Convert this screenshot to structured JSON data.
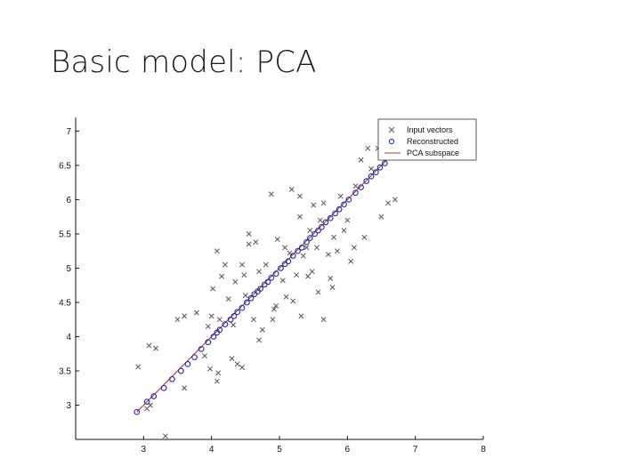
{
  "slide": {
    "title": "Basic model: PCA"
  },
  "chart_data": {
    "type": "scatter",
    "title": "",
    "xlabel": "",
    "ylabel": "",
    "xlim": [
      2,
      8
    ],
    "ylim": [
      2.5,
      7.2
    ],
    "xticks": [
      3,
      4,
      5,
      6,
      7,
      8
    ],
    "yticks": [
      3,
      3.5,
      4,
      4.5,
      5,
      5.5,
      6,
      6.5,
      7
    ],
    "ytick_labels": [
      "3",
      "3.5",
      "4",
      "4.5",
      "5",
      "5.5",
      "6",
      "6.5",
      "7"
    ],
    "grid": false,
    "legend": {
      "position": "top-right",
      "entries": [
        "Input vectors",
        "Reconstructed",
        "PCA subspace"
      ]
    },
    "colors": {
      "input": "#555555",
      "reconstructed": "#2a2aa8",
      "subspace": "#b23a3a"
    },
    "series": [
      {
        "name": "Input vectors",
        "marker": "x",
        "points": [
          [
            2.92,
            3.56
          ],
          [
            3.05,
            2.95
          ],
          [
            3.08,
            3.87
          ],
          [
            3.1,
            3.0
          ],
          [
            3.18,
            3.83
          ],
          [
            3.32,
            2.55
          ],
          [
            3.5,
            4.25
          ],
          [
            3.6,
            4.3
          ],
          [
            3.6,
            3.25
          ],
          [
            3.78,
            4.35
          ],
          [
            3.9,
            3.72
          ],
          [
            3.95,
            4.15
          ],
          [
            4.0,
            4.3
          ],
          [
            3.98,
            3.53
          ],
          [
            4.02,
            4.7
          ],
          [
            4.08,
            3.35
          ],
          [
            4.1,
            3.47
          ],
          [
            4.12,
            4.25
          ],
          [
            4.08,
            5.25
          ],
          [
            4.15,
            4.88
          ],
          [
            4.2,
            5.05
          ],
          [
            4.25,
            4.55
          ],
          [
            4.3,
            3.68
          ],
          [
            4.32,
            4.17
          ],
          [
            4.35,
            4.8
          ],
          [
            4.38,
            3.6
          ],
          [
            4.45,
            3.55
          ],
          [
            4.45,
            5.05
          ],
          [
            4.48,
            4.9
          ],
          [
            4.5,
            4.6
          ],
          [
            4.55,
            5.5
          ],
          [
            4.55,
            5.35
          ],
          [
            4.62,
            4.25
          ],
          [
            4.65,
            5.38
          ],
          [
            4.7,
            4.95
          ],
          [
            4.7,
            3.95
          ],
          [
            4.75,
            4.1
          ],
          [
            4.8,
            5.05
          ],
          [
            4.88,
            6.08
          ],
          [
            4.9,
            4.25
          ],
          [
            4.92,
            4.4
          ],
          [
            4.95,
            4.45
          ],
          [
            4.97,
            5.42
          ],
          [
            5.05,
            4.82
          ],
          [
            5.08,
            5.3
          ],
          [
            5.1,
            4.58
          ],
          [
            5.15,
            5.22
          ],
          [
            5.18,
            6.15
          ],
          [
            5.2,
            4.52
          ],
          [
            5.25,
            4.9
          ],
          [
            5.3,
            6.05
          ],
          [
            5.3,
            5.75
          ],
          [
            5.32,
            4.3
          ],
          [
            5.35,
            5.18
          ],
          [
            5.4,
            5.3
          ],
          [
            5.42,
            4.88
          ],
          [
            5.45,
            5.55
          ],
          [
            5.48,
            4.95
          ],
          [
            5.5,
            5.92
          ],
          [
            5.55,
            5.3
          ],
          [
            5.57,
            4.65
          ],
          [
            5.6,
            5.7
          ],
          [
            5.65,
            4.25
          ],
          [
            5.65,
            5.95
          ],
          [
            5.72,
            5.2
          ],
          [
            5.75,
            4.85
          ],
          [
            5.78,
            4.72
          ],
          [
            5.8,
            5.45
          ],
          [
            5.85,
            5.25
          ],
          [
            5.9,
            6.05
          ],
          [
            5.95,
            5.55
          ],
          [
            6.0,
            5.7
          ],
          [
            6.05,
            5.1
          ],
          [
            6.1,
            5.3
          ],
          [
            6.12,
            6.2
          ],
          [
            6.2,
            6.58
          ],
          [
            6.25,
            5.45
          ],
          [
            6.3,
            6.75
          ],
          [
            6.35,
            6.45
          ],
          [
            6.45,
            6.75
          ],
          [
            6.5,
            5.75
          ],
          [
            6.6,
            5.95
          ],
          [
            6.7,
            6.0
          ],
          [
            6.82,
            7.1
          ]
        ]
      },
      {
        "name": "Reconstructed",
        "marker": "o",
        "points": [
          [
            2.9,
            2.9
          ],
          [
            3.05,
            3.05
          ],
          [
            3.15,
            3.13
          ],
          [
            3.3,
            3.25
          ],
          [
            3.42,
            3.38
          ],
          [
            3.55,
            3.5
          ],
          [
            3.65,
            3.6
          ],
          [
            3.75,
            3.7
          ],
          [
            3.85,
            3.82
          ],
          [
            3.95,
            3.92
          ],
          [
            4.03,
            4.0
          ],
          [
            4.08,
            4.06
          ],
          [
            4.12,
            4.1
          ],
          [
            4.2,
            4.18
          ],
          [
            4.28,
            4.25
          ],
          [
            4.33,
            4.3
          ],
          [
            4.38,
            4.36
          ],
          [
            4.45,
            4.42
          ],
          [
            4.52,
            4.5
          ],
          [
            4.58,
            4.56
          ],
          [
            4.63,
            4.62
          ],
          [
            4.68,
            4.66
          ],
          [
            4.72,
            4.7
          ],
          [
            4.78,
            4.76
          ],
          [
            4.83,
            4.8
          ],
          [
            4.88,
            4.86
          ],
          [
            4.95,
            4.92
          ],
          [
            5.02,
            5.0
          ],
          [
            5.08,
            5.06
          ],
          [
            5.13,
            5.1
          ],
          [
            5.2,
            5.18
          ],
          [
            5.27,
            5.25
          ],
          [
            5.33,
            5.3
          ],
          [
            5.4,
            5.38
          ],
          [
            5.45,
            5.44
          ],
          [
            5.52,
            5.5
          ],
          [
            5.57,
            5.55
          ],
          [
            5.62,
            5.6
          ],
          [
            5.68,
            5.67
          ],
          [
            5.75,
            5.73
          ],
          [
            5.82,
            5.8
          ],
          [
            5.88,
            5.86
          ],
          [
            5.95,
            5.93
          ],
          [
            6.02,
            6.0
          ],
          [
            6.12,
            6.1
          ],
          [
            6.2,
            6.18
          ],
          [
            6.28,
            6.27
          ],
          [
            6.35,
            6.34
          ],
          [
            6.42,
            6.4
          ],
          [
            6.48,
            6.47
          ],
          [
            6.55,
            6.53
          ]
        ]
      },
      {
        "name": "PCA subspace",
        "marker": "line",
        "points": [
          [
            2.9,
            2.9
          ],
          [
            6.6,
            6.6
          ]
        ]
      }
    ]
  }
}
